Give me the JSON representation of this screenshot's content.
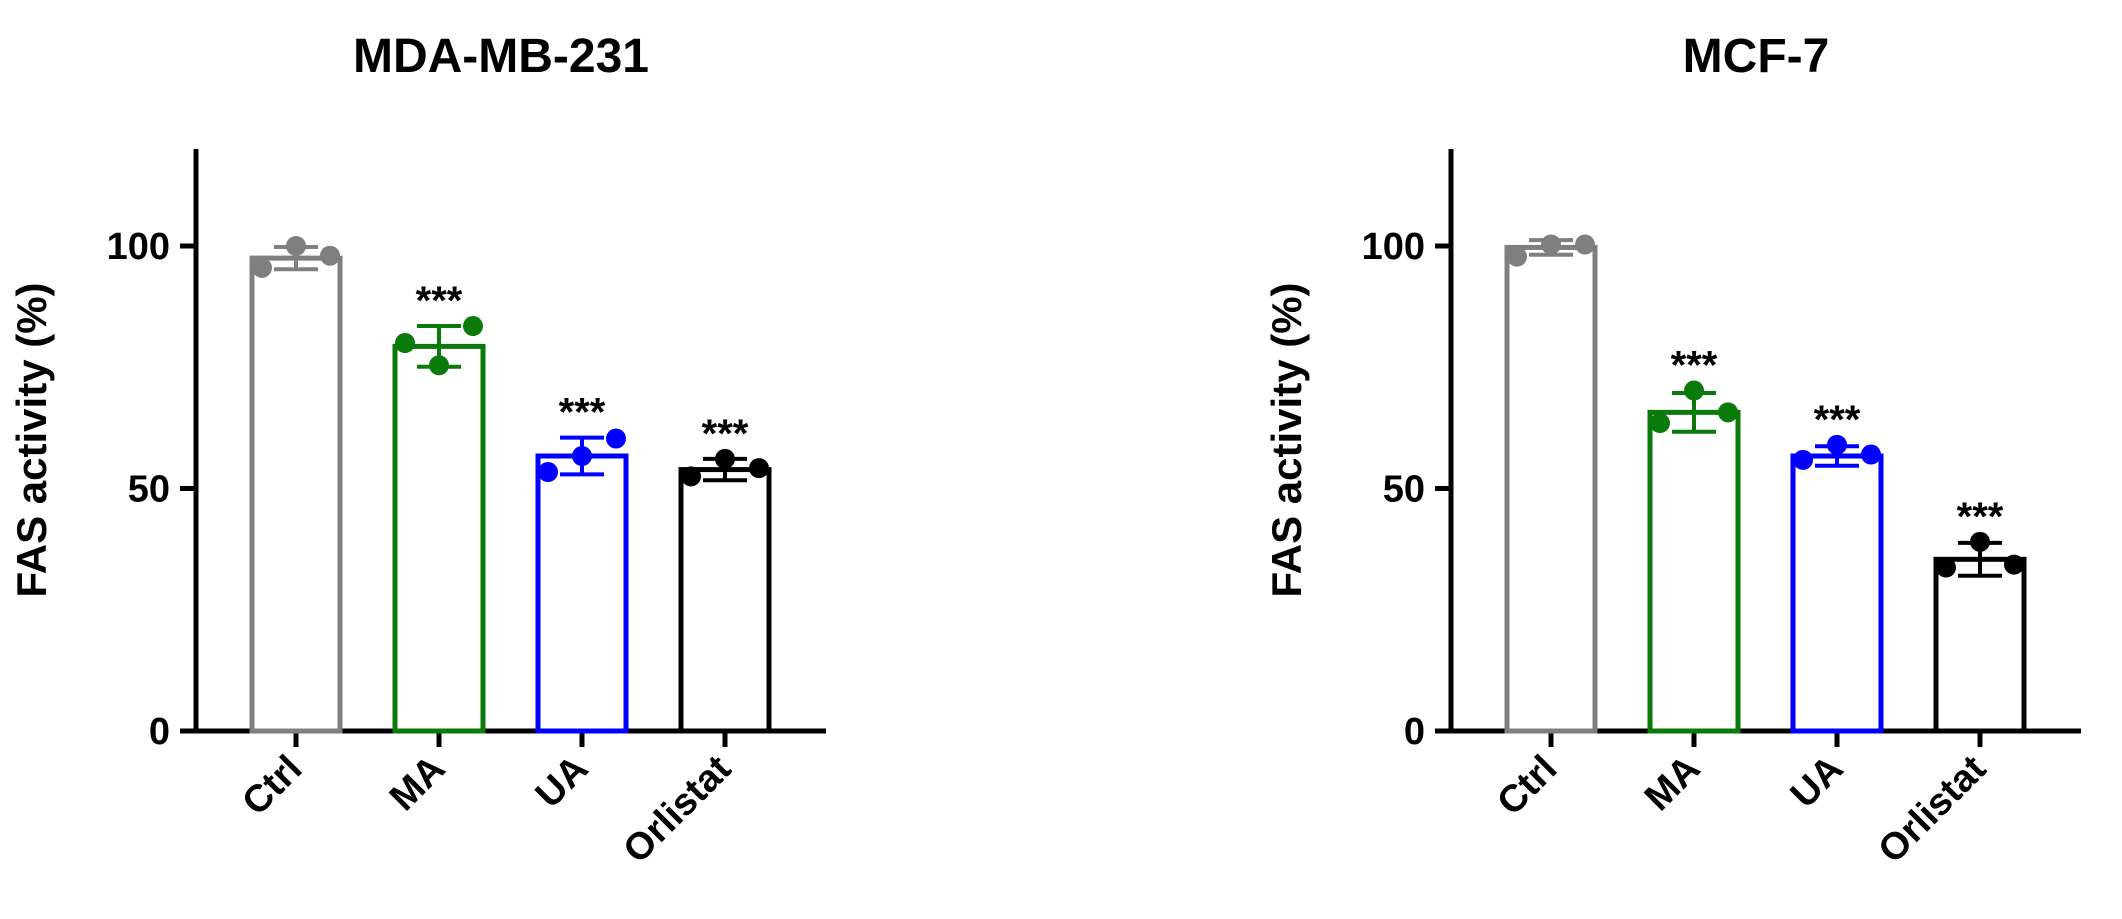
{
  "chart_data": [
    {
      "type": "bar",
      "title": "MDA-MB-231",
      "ylabel": "FAS activity (%)",
      "categories": [
        "Ctrl",
        "MA",
        "UA",
        "Orlistat"
      ],
      "values": [
        97.5,
        79.3,
        56.7,
        53.9
      ],
      "errors": [
        2.3,
        4.2,
        3.8,
        2.2
      ],
      "points": [
        [
          95.5,
          100,
          98
        ],
        [
          80,
          75.4,
          83.5
        ],
        [
          53.4,
          56.7,
          60.3
        ],
        [
          52.5,
          56.1,
          54.2
        ]
      ],
      "annotations": [
        null,
        "***",
        "***",
        "***"
      ],
      "colors": [
        "#7f7f7f",
        "#0a7a0a",
        "#0000ff",
        "#000000"
      ],
      "ylim": [
        0,
        120
      ],
      "yticks": [
        0,
        50,
        100
      ]
    },
    {
      "type": "bar",
      "title": "MCF-7",
      "ylabel": "FAS activity (%)",
      "categories": [
        "Ctrl",
        "MA",
        "UA",
        "Orlistat"
      ],
      "values": [
        99.7,
        65.7,
        56.7,
        35.4
      ],
      "errors": [
        1.5,
        4,
        2,
        3.4
      ],
      "points": [
        [
          97.8,
          100.3,
          100.3
        ],
        [
          63.5,
          70.2,
          65.7
        ],
        [
          55.9,
          59,
          57
        ],
        [
          33.7,
          39,
          34.3
        ]
      ],
      "annotations": [
        null,
        "***",
        "***",
        "***"
      ],
      "colors": [
        "#7f7f7f",
        "#0a7a0a",
        "#0000ff",
        "#000000"
      ],
      "ylim": [
        0,
        120
      ],
      "yticks": [
        0,
        50,
        100
      ]
    }
  ]
}
